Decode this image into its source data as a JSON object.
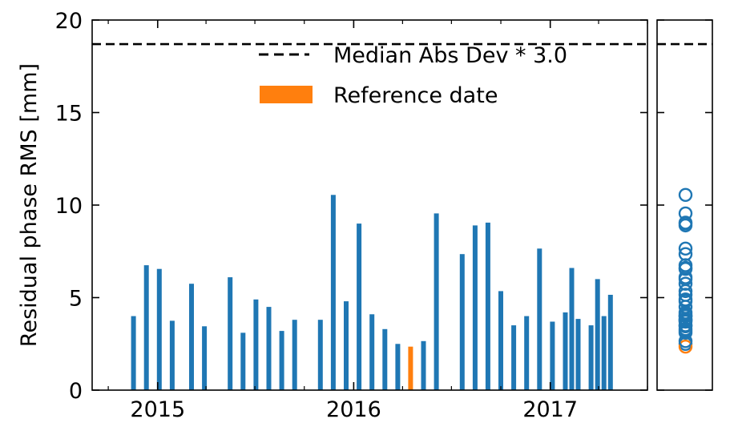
{
  "chart_data": {
    "type": "bar",
    "ylabel": "Residual phase RMS [mm]",
    "ylim": [
      0,
      20
    ],
    "yticks": [
      0,
      5,
      10,
      15,
      20
    ],
    "xlim": [
      "2014-09-01",
      "2017-07-01"
    ],
    "xticks": [
      {
        "label": "2015",
        "date": "2015-01-01"
      },
      {
        "label": "2016",
        "date": "2016-01-01"
      },
      {
        "label": "2017",
        "date": "2017-01-01"
      }
    ],
    "grid": false,
    "legend_position": "top-right",
    "threshold": {
      "label": "Median Abs Dev * 3.0",
      "value": 18.7,
      "style": "dashed",
      "color": "#000000"
    },
    "reference": {
      "label": "Reference date",
      "color": "#ff7f0e"
    },
    "series_color": "#1f77b4",
    "bars": [
      {
        "date": "2014-11-17",
        "value": 4.0
      },
      {
        "date": "2014-12-11",
        "value": 6.75
      },
      {
        "date": "2015-01-04",
        "value": 6.55
      },
      {
        "date": "2015-01-28",
        "value": 3.75
      },
      {
        "date": "2015-03-05",
        "value": 5.75
      },
      {
        "date": "2015-03-29",
        "value": 3.45
      },
      {
        "date": "2015-05-16",
        "value": 6.1
      },
      {
        "date": "2015-06-09",
        "value": 3.1
      },
      {
        "date": "2015-07-03",
        "value": 4.9
      },
      {
        "date": "2015-07-27",
        "value": 4.5
      },
      {
        "date": "2015-08-20",
        "value": 3.2
      },
      {
        "date": "2015-09-13",
        "value": 3.8
      },
      {
        "date": "2015-10-31",
        "value": 3.8
      },
      {
        "date": "2015-11-24",
        "value": 10.55
      },
      {
        "date": "2015-12-18",
        "value": 4.8
      },
      {
        "date": "2016-01-11",
        "value": 9.0
      },
      {
        "date": "2016-02-04",
        "value": 4.1
      },
      {
        "date": "2016-02-28",
        "value": 3.3
      },
      {
        "date": "2016-03-23",
        "value": 2.5
      },
      {
        "date": "2016-04-16",
        "value": 2.35,
        "reference": true
      },
      {
        "date": "2016-05-10",
        "value": 2.65
      },
      {
        "date": "2016-06-03",
        "value": 9.55
      },
      {
        "date": "2016-07-21",
        "value": 7.35
      },
      {
        "date": "2016-08-14",
        "value": 8.9
      },
      {
        "date": "2016-09-07",
        "value": 9.05
      },
      {
        "date": "2016-10-01",
        "value": 5.35
      },
      {
        "date": "2016-10-25",
        "value": 3.5
      },
      {
        "date": "2016-11-18",
        "value": 4.0
      },
      {
        "date": "2016-12-12",
        "value": 7.65
      },
      {
        "date": "2017-01-05",
        "value": 3.7
      },
      {
        "date": "2017-01-29",
        "value": 4.2
      },
      {
        "date": "2017-02-10",
        "value": 6.6
      },
      {
        "date": "2017-02-22",
        "value": 3.85
      },
      {
        "date": "2017-03-18",
        "value": 3.5
      },
      {
        "date": "2017-03-30",
        "value": 6.0
      },
      {
        "date": "2017-04-11",
        "value": 4.0
      },
      {
        "date": "2017-04-23",
        "value": 5.15
      }
    ]
  }
}
